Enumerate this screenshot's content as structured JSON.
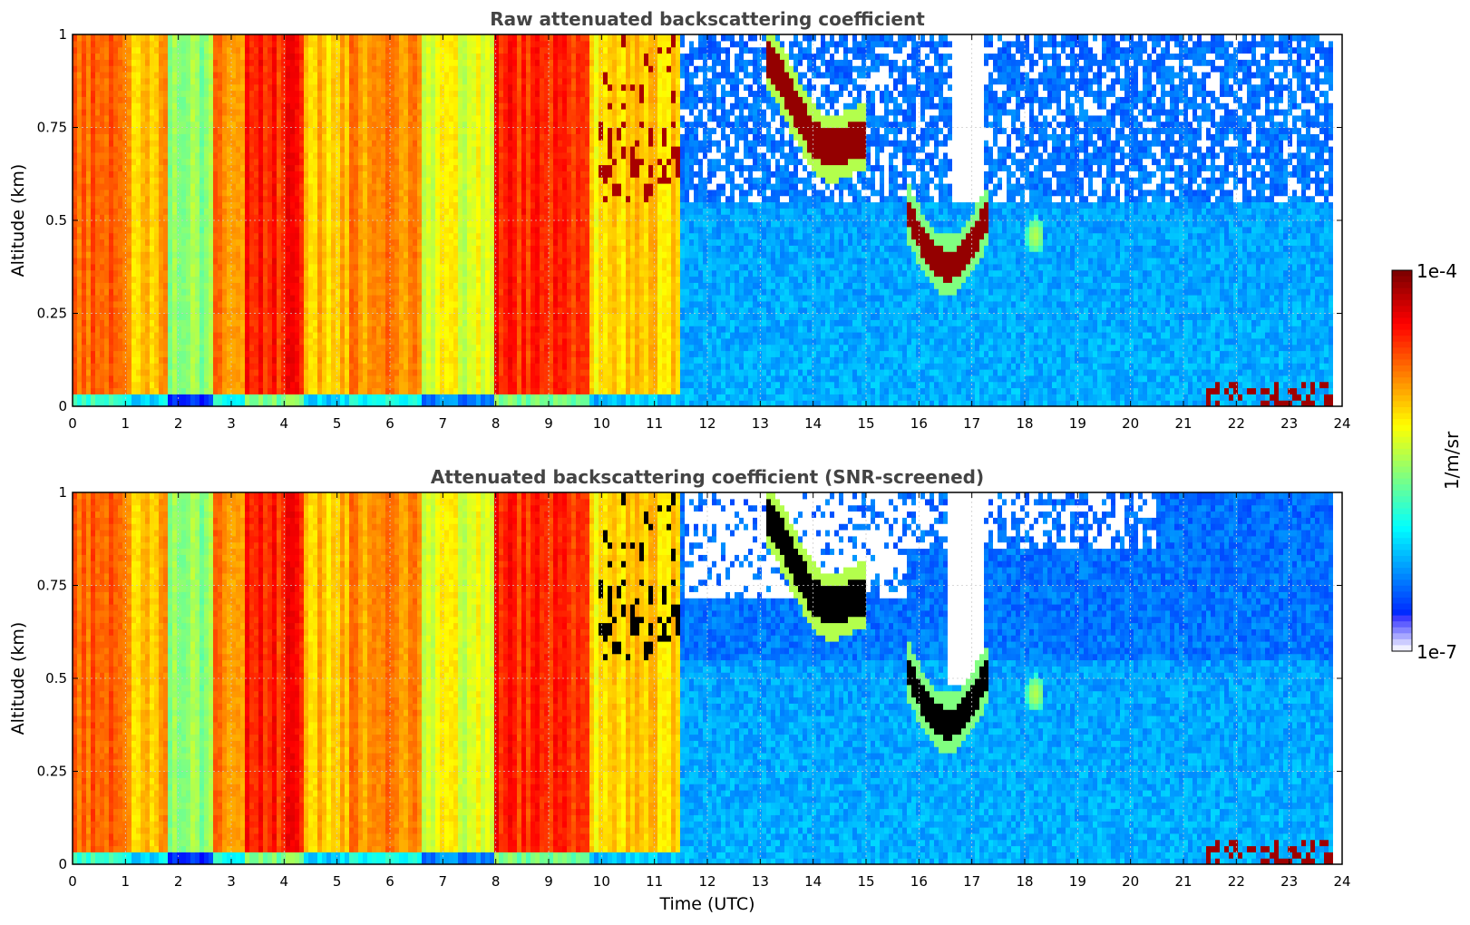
{
  "chart_data": [
    {
      "type": "heatmap",
      "title": "Raw attenuated backscattering coefficient",
      "ylabel": "Altitude (km)",
      "xlabel": "",
      "xlim": [
        0,
        24
      ],
      "ylim": [
        0,
        1
      ],
      "x_ticks": [
        "0",
        "1",
        "2",
        "3",
        "4",
        "5",
        "6",
        "7",
        "8",
        "9",
        "10",
        "11",
        "12",
        "13",
        "14",
        "15",
        "16",
        "17",
        "18",
        "19",
        "20",
        "21",
        "22",
        "23",
        "24"
      ],
      "y_ticks": [
        "0",
        "0.25",
        "0.5",
        "0.75",
        "1"
      ],
      "grid": true,
      "screened": false,
      "value_range": [
        "1e-7",
        "1e-4"
      ],
      "log_scale_colors": true,
      "features": {
        "fog_until_hour": 11.5,
        "low_cloud_segments": [
          [
            13.0,
            15.0,
            0.65,
            1.0
          ],
          [
            15.8,
            17.3,
            0.35,
            0.55
          ],
          [
            21.3,
            23.8,
            0.0,
            0.08
          ]
        ],
        "aerosol_hotspot": [
          18.2,
          0.45
        ]
      }
    },
    {
      "type": "heatmap",
      "title": "Attenuated backscattering coefficient (SNR-screened)",
      "ylabel": "Altitude (km)",
      "xlabel": "Time (UTC)",
      "xlim": [
        0,
        24
      ],
      "ylim": [
        0,
        1
      ],
      "x_ticks": [
        "0",
        "1",
        "2",
        "3",
        "4",
        "5",
        "6",
        "7",
        "8",
        "9",
        "10",
        "11",
        "12",
        "13",
        "14",
        "15",
        "16",
        "17",
        "18",
        "19",
        "20",
        "21",
        "22",
        "23",
        "24"
      ],
      "y_ticks": [
        "0",
        "0.25",
        "0.5",
        "0.75",
        "1"
      ],
      "grid": true,
      "screened": true,
      "value_range": [
        "1e-7",
        "1e-4"
      ],
      "log_scale_colors": true
    }
  ],
  "colorbar": {
    "max_label": "1e-4",
    "min_label": "1e-7",
    "unit_label": "1/m/sr",
    "colormap": "jet"
  },
  "colors": {
    "axis": "#000000",
    "grid": "#bbbbbb",
    "title": "#444444",
    "cloud_core": "#7f0000",
    "screened_cloud_core": "#000000",
    "missing": "#ffffff"
  }
}
